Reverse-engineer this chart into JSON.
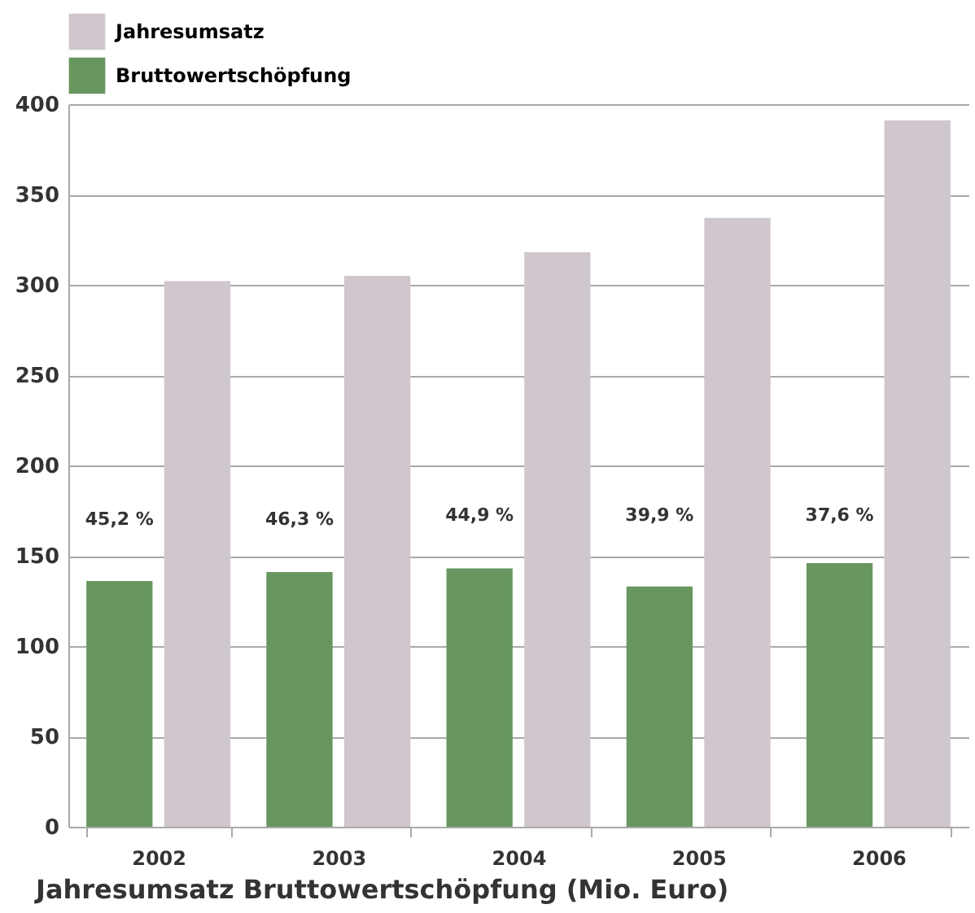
{
  "chart_data": {
    "type": "bar",
    "title": "Jahresumsatz Bruttowertschöpfung (Mio. Euro)",
    "categories": [
      "2002",
      "2003",
      "2004",
      "2005",
      "2006"
    ],
    "series": [
      {
        "name": "Bruttowertschöpfung",
        "color": "#67975f",
        "values": [
          136,
          141,
          143,
          133,
          146
        ]
      },
      {
        "name": "Jahresumsatz",
        "color": "#d0c6cd",
        "values": [
          302,
          305,
          318,
          337,
          391
        ]
      }
    ],
    "annotations": [
      {
        "text": "45,2 %",
        "x": "2002",
        "y": 170
      },
      {
        "text": "46,3 %",
        "x": "2003",
        "y": 170
      },
      {
        "text": "44,9 %",
        "x": "2004",
        "y": 172
      },
      {
        "text": "39,9 %",
        "x": "2005",
        "y": 172
      },
      {
        "text": "37,6 %",
        "x": "2006",
        "y": 172
      }
    ],
    "ylim": [
      0,
      400
    ],
    "yticks": [
      0,
      50,
      100,
      150,
      200,
      250,
      300,
      350,
      400
    ],
    "grid": "y",
    "legend": "top"
  }
}
